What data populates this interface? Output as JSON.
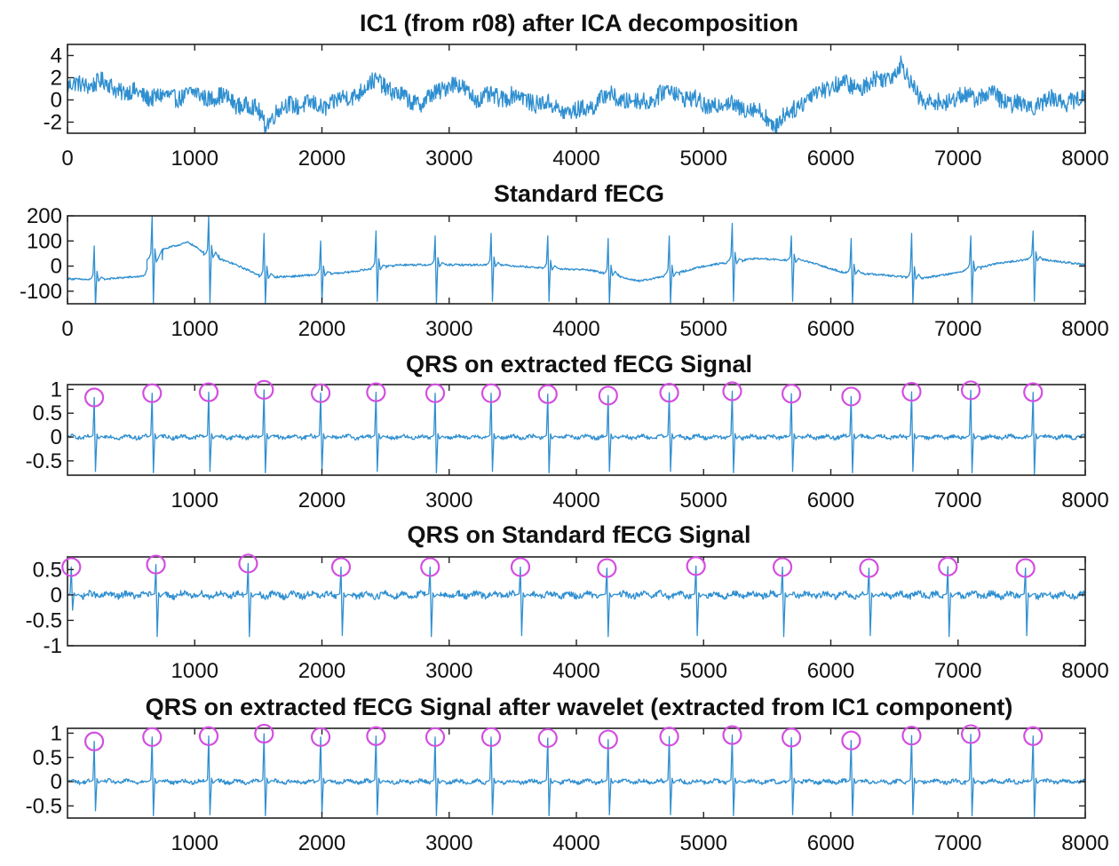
{
  "chart_data": [
    {
      "type": "line",
      "title": "IC1 (from r08) after ICA decomposition",
      "xlim": [
        0,
        8000
      ],
      "ylim": [
        -3,
        5
      ],
      "xticks": [
        0,
        1000,
        2000,
        3000,
        4000,
        5000,
        6000,
        7000,
        8000
      ],
      "xtick_labels": [
        "0",
        "1000",
        "2000",
        "3000",
        "4000",
        "5000",
        "6000",
        "7000",
        "8000"
      ],
      "yticks": [
        4,
        2,
        0,
        -2
      ],
      "ytick_labels": [
        "4",
        "2",
        "0",
        "-2"
      ],
      "series": [
        {
          "color": "#2f8fd0",
          "x": [
            0,
            250,
            500,
            750,
            1000,
            1250,
            1500,
            1550,
            1750,
            2000,
            2200,
            2450,
            2600,
            2800,
            3000,
            3250,
            3500,
            3750,
            4000,
            4250,
            4500,
            4750,
            5000,
            5250,
            5500,
            5550,
            5750,
            6000,
            6250,
            6500,
            6550,
            6750,
            7000,
            7250,
            7500,
            7750,
            8000
          ],
          "y": [
            1.2,
            1.6,
            0.6,
            0.2,
            0.5,
            0.1,
            -1.0,
            -2.0,
            -0.3,
            -0.6,
            0.2,
            1.8,
            0.3,
            -0.3,
            1.6,
            0.1,
            0.4,
            -0.4,
            -1.2,
            0.4,
            -0.3,
            0.9,
            -0.5,
            -0.4,
            -1.4,
            -2.5,
            -0.3,
            1.4,
            1.2,
            2.5,
            3.0,
            -0.5,
            0.2,
            0.5,
            -0.6,
            0.0,
            -0.1
          ]
        }
      ],
      "markers": []
    },
    {
      "type": "line",
      "title": "Standard fECG",
      "xlim": [
        0,
        8000
      ],
      "ylim": [
        -150,
        200
      ],
      "xticks": [
        0,
        1000,
        2000,
        3000,
        4000,
        5000,
        6000,
        7000,
        8000
      ],
      "xtick_labels": [
        "0",
        "1000",
        "2000",
        "3000",
        "4000",
        "5000",
        "6000",
        "7000",
        "8000"
      ],
      "yticks": [
        200,
        100,
        0,
        -100
      ],
      "ytick_labels": [
        "200",
        "100",
        "0",
        "-100"
      ],
      "baseline": {
        "x": [
          0,
          200,
          600,
          700,
          950,
          1100,
          1300,
          1550,
          1800,
          2200,
          2600,
          3000,
          3400,
          3800,
          4100,
          4500,
          4700,
          5000,
          5400,
          5800,
          6100,
          6400,
          6700,
          7000,
          7300,
          7600,
          8000
        ],
        "y": [
          -50,
          -55,
          -40,
          60,
          95,
          45,
          10,
          -45,
          -40,
          -25,
          5,
          5,
          5,
          -10,
          -15,
          -60,
          -40,
          0,
          30,
          20,
          -25,
          -35,
          -50,
          -25,
          10,
          30,
          5
        ]
      },
      "beats": [
        210,
        665,
        1110,
        1545,
        1990,
        2425,
        2890,
        3330,
        3775,
        4250,
        4730,
        5225,
        5690,
        6160,
        6635,
        7100,
        7590
      ],
      "beat_peaks": [
        80,
        200,
        200,
        130,
        100,
        140,
        120,
        130,
        120,
        110,
        120,
        170,
        120,
        110,
        130,
        120,
        140
      ],
      "beat_troughs": [
        -160,
        -150,
        -145,
        -150,
        -145,
        -140,
        -150,
        -140,
        -140,
        -150,
        -150,
        -140,
        -140,
        -150,
        -150,
        -150,
        -140
      ],
      "markers": []
    },
    {
      "type": "line",
      "title": "QRS on extracted fECG Signal",
      "xlim": [
        0,
        8000
      ],
      "ylim": [
        -0.8,
        1.1
      ],
      "xticks": [
        1000,
        2000,
        3000,
        4000,
        5000,
        6000,
        7000,
        8000
      ],
      "xtick_labels": [
        "1000",
        "2000",
        "3000",
        "4000",
        "5000",
        "6000",
        "7000",
        "8000"
      ],
      "yticks": [
        1,
        0.5,
        0,
        -0.5
      ],
      "ytick_labels": [
        "1",
        "0.5",
        "0",
        "-0.5"
      ],
      "beats": [
        210,
        665,
        1110,
        1545,
        1990,
        2425,
        2890,
        3330,
        3775,
        4250,
        4730,
        5225,
        5690,
        6160,
        6635,
        7100,
        7590
      ],
      "beat_peaks": [
        0.83,
        0.92,
        0.94,
        0.99,
        0.92,
        0.94,
        0.92,
        0.92,
        0.9,
        0.87,
        0.93,
        0.96,
        0.91,
        0.85,
        0.95,
        0.98,
        0.94
      ],
      "beat_troughs": [
        -0.72,
        -0.75,
        -0.72,
        -0.75,
        -0.72,
        -0.72,
        -0.75,
        -0.72,
        -0.75,
        -0.72,
        -0.72,
        -0.75,
        -0.72,
        -0.75,
        -0.72,
        -0.75,
        -0.78
      ],
      "markers": [
        {
          "x": 210,
          "y": 0.83
        },
        {
          "x": 665,
          "y": 0.92
        },
        {
          "x": 1110,
          "y": 0.94
        },
        {
          "x": 1545,
          "y": 0.99
        },
        {
          "x": 1990,
          "y": 0.92
        },
        {
          "x": 2425,
          "y": 0.94
        },
        {
          "x": 2890,
          "y": 0.92
        },
        {
          "x": 3330,
          "y": 0.92
        },
        {
          "x": 3775,
          "y": 0.9
        },
        {
          "x": 4250,
          "y": 0.87
        },
        {
          "x": 4730,
          "y": 0.93
        },
        {
          "x": 5225,
          "y": 0.96
        },
        {
          "x": 5690,
          "y": 0.91
        },
        {
          "x": 6160,
          "y": 0.85
        },
        {
          "x": 6635,
          "y": 0.95
        },
        {
          "x": 7100,
          "y": 0.98
        },
        {
          "x": 7590,
          "y": 0.94
        }
      ]
    },
    {
      "type": "line",
      "title": "QRS on Standard fECG Signal",
      "xlim": [
        0,
        8000
      ],
      "ylim": [
        -1,
        0.75
      ],
      "xticks": [
        1000,
        2000,
        3000,
        4000,
        5000,
        6000,
        7000,
        8000
      ],
      "xtick_labels": [
        "1000",
        "2000",
        "3000",
        "4000",
        "5000",
        "6000",
        "7000",
        "8000"
      ],
      "yticks": [
        0.5,
        0,
        -0.5,
        -1
      ],
      "ytick_labels": [
        "0.5",
        "0",
        "-0.5",
        "-1"
      ],
      "beats": [
        30,
        695,
        1420,
        2150,
        2850,
        3560,
        4240,
        4940,
        5620,
        6300,
        6920,
        7530
      ],
      "beat_peaks": [
        0.55,
        0.6,
        0.62,
        0.55,
        0.55,
        0.55,
        0.53,
        0.57,
        0.55,
        0.53,
        0.56,
        0.53
      ],
      "beat_troughs": [
        -0.3,
        -0.82,
        -0.82,
        -0.8,
        -0.82,
        -0.8,
        -0.82,
        -0.8,
        -0.82,
        -0.8,
        -0.82,
        -0.8
      ],
      "markers": [
        {
          "x": 30,
          "y": 0.55
        },
        {
          "x": 695,
          "y": 0.6
        },
        {
          "x": 1420,
          "y": 0.62
        },
        {
          "x": 2150,
          "y": 0.55
        },
        {
          "x": 2850,
          "y": 0.55
        },
        {
          "x": 3560,
          "y": 0.55
        },
        {
          "x": 4240,
          "y": 0.53
        },
        {
          "x": 4940,
          "y": 0.57
        },
        {
          "x": 5620,
          "y": 0.55
        },
        {
          "x": 6300,
          "y": 0.53
        },
        {
          "x": 6920,
          "y": 0.56
        },
        {
          "x": 7530,
          "y": 0.53
        }
      ]
    },
    {
      "type": "line",
      "title": "QRS on extracted fECG Signal after wavelet (extracted from IC1 component)",
      "xlim": [
        0,
        8000
      ],
      "ylim": [
        -0.75,
        1.1
      ],
      "xticks": [
        1000,
        2000,
        3000,
        4000,
        5000,
        6000,
        7000,
        8000
      ],
      "xtick_labels": [
        "1000",
        "2000",
        "3000",
        "4000",
        "5000",
        "6000",
        "7000",
        "8000"
      ],
      "yticks": [
        1,
        0.5,
        0,
        -0.5
      ],
      "ytick_labels": [
        "1",
        "0.5",
        "0",
        "-0.5"
      ],
      "beats": [
        210,
        665,
        1110,
        1545,
        1990,
        2425,
        2890,
        3330,
        3775,
        4250,
        4730,
        5225,
        5690,
        6160,
        6635,
        7100,
        7590
      ],
      "beat_peaks": [
        0.83,
        0.92,
        0.94,
        0.99,
        0.92,
        0.94,
        0.92,
        0.92,
        0.9,
        0.87,
        0.93,
        0.96,
        0.91,
        0.85,
        0.95,
        0.98,
        0.94
      ],
      "beat_troughs": [
        -0.6,
        -0.7,
        -0.68,
        -0.7,
        -0.68,
        -0.68,
        -0.7,
        -0.68,
        -0.7,
        -0.68,
        -0.68,
        -0.7,
        -0.68,
        -0.7,
        -0.68,
        -0.7,
        -0.72
      ],
      "markers": [
        {
          "x": 210,
          "y": 0.83
        },
        {
          "x": 665,
          "y": 0.92
        },
        {
          "x": 1110,
          "y": 0.94
        },
        {
          "x": 1545,
          "y": 0.99
        },
        {
          "x": 1990,
          "y": 0.92
        },
        {
          "x": 2425,
          "y": 0.94
        },
        {
          "x": 2890,
          "y": 0.92
        },
        {
          "x": 3330,
          "y": 0.92
        },
        {
          "x": 3775,
          "y": 0.9
        },
        {
          "x": 4250,
          "y": 0.87
        },
        {
          "x": 4730,
          "y": 0.93
        },
        {
          "x": 5225,
          "y": 0.96
        },
        {
          "x": 5690,
          "y": 0.91
        },
        {
          "x": 6160,
          "y": 0.85
        },
        {
          "x": 6635,
          "y": 0.95
        },
        {
          "x": 7100,
          "y": 0.98
        },
        {
          "x": 7590,
          "y": 0.94
        }
      ]
    }
  ],
  "colors": {
    "signal": "#2f8fd0",
    "qrs_marker": "#d24fe0",
    "axes": "#222222"
  }
}
